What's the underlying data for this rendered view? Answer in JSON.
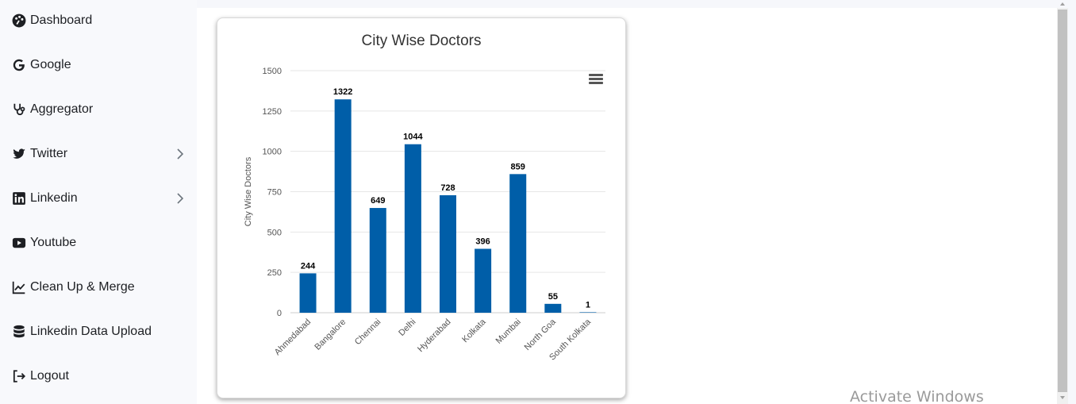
{
  "sidebar": {
    "items": [
      {
        "label": "Dashboard",
        "icon": "palette-icon"
      },
      {
        "label": "Google",
        "icon": "google-icon"
      },
      {
        "label": "Aggregator",
        "icon": "stethoscope-icon"
      },
      {
        "label": "Twitter",
        "icon": "twitter-icon",
        "has_submenu": true
      },
      {
        "label": "Linkedin",
        "icon": "linkedin-icon",
        "has_submenu": true
      },
      {
        "label": "Youtube",
        "icon": "youtube-icon"
      },
      {
        "label": "Clean Up & Merge",
        "icon": "line-chart-icon"
      },
      {
        "label": "Linkedin Data Upload",
        "icon": "database-icon"
      },
      {
        "label": "Logout",
        "icon": "logout-icon"
      }
    ]
  },
  "chart_data": {
    "type": "bar",
    "title": "City Wise Doctors",
    "ylabel": "City Wise Doctors",
    "xlabel": "",
    "categories": [
      "Ahmedabad",
      "Bangalore",
      "Chennai",
      "Delhi",
      "Hyderabad",
      "Kolkata",
      "Mumbai",
      "North Goa",
      "South Kolkata"
    ],
    "values": [
      244,
      1322,
      649,
      1044,
      728,
      396,
      859,
      55,
      1
    ],
    "ylim": [
      0,
      1500
    ],
    "yticks": [
      0,
      250,
      500,
      750,
      1000,
      1250,
      1500
    ],
    "bar_color": "#005ea8",
    "grid": true,
    "legend": "none"
  },
  "watermark": "Activate Windows"
}
